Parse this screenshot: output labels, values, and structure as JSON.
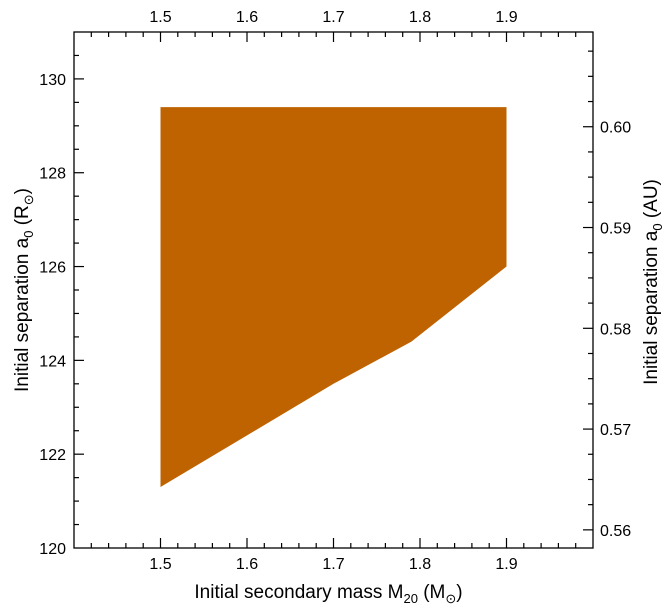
{
  "chart_data": {
    "type": "area",
    "xlabel": "Initial secondary mass M",
    "xlabel_sub": "20",
    "xlabel_unit_open": " (M",
    "xlabel_unit_sub": "⊙",
    "xlabel_unit_close": ")",
    "ylabel": "Initial separation  a",
    "ylabel_sub": "0",
    "ylabel_unit_open": " (R",
    "ylabel_unit_sub": "⊙",
    "ylabel_unit_close": ")",
    "y2label": "Initial separation  a",
    "y2label_sub": "0",
    "y2label_unit": " (AU)",
    "xlim": [
      1.4,
      2.0
    ],
    "ylim": [
      120,
      131
    ],
    "y2lim": [
      0.5582,
      0.6094
    ],
    "x_ticks_major": [
      1.5,
      1.6,
      1.7,
      1.8,
      1.9
    ],
    "x_ticks_major_labels": [
      "1.5",
      "1.6",
      "1.7",
      "1.8",
      "1.9"
    ],
    "x_ticks_minor_step": 0.02,
    "y_ticks_major": [
      120,
      122,
      124,
      126,
      128,
      130
    ],
    "y_ticks_major_labels": [
      "120",
      "122",
      "124",
      "126",
      "128",
      "130"
    ],
    "y_ticks_minor_step": 0.5,
    "y2_ticks_major": [
      0.56,
      0.57,
      0.58,
      0.59,
      0.6
    ],
    "y2_ticks_major_labels": [
      "0.56",
      "0.57",
      "0.58",
      "0.59",
      "0.60"
    ],
    "y2_ticks_minor_step": 0.0025,
    "region": {
      "name": "",
      "color": "#bf6300",
      "polygon": [
        [
          1.5,
          129.4
        ],
        [
          1.9,
          129.4
        ],
        [
          1.9,
          126.0
        ],
        [
          1.79,
          124.4
        ],
        [
          1.7,
          123.5
        ],
        [
          1.5,
          121.3
        ]
      ]
    }
  }
}
